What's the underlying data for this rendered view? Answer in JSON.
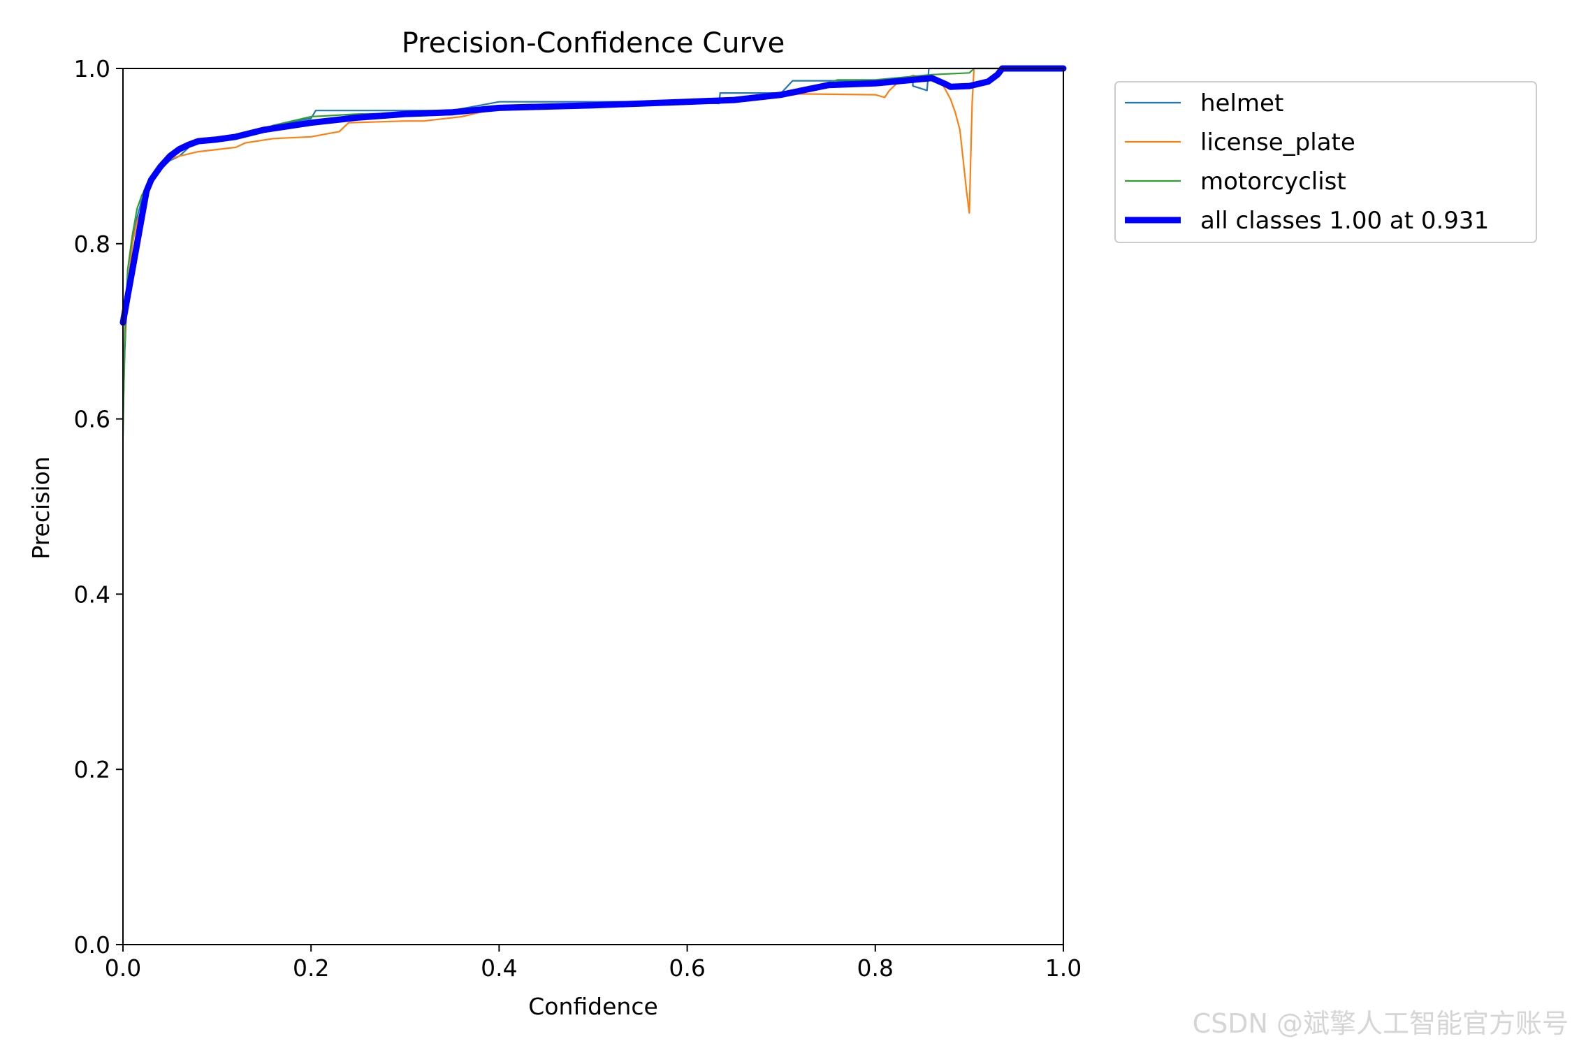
{
  "chart_data": {
    "type": "line",
    "title": "Precision-Confidence Curve",
    "xlabel": "Confidence",
    "ylabel": "Precision",
    "xlim": [
      0,
      1
    ],
    "ylim": [
      0,
      1
    ],
    "x_ticks": [
      "0.0",
      "0.2",
      "0.4",
      "0.6",
      "0.8",
      "1.0"
    ],
    "y_ticks": [
      "0.0",
      "0.2",
      "0.4",
      "0.6",
      "0.8",
      "1.0"
    ],
    "grid": false,
    "legend_position": "outside-top-right",
    "series": [
      {
        "name": "helmet",
        "color": "#1f77b4",
        "width": "thin",
        "points": [
          [
            0.0,
            0.6
          ],
          [
            0.002,
            0.68
          ],
          [
            0.005,
            0.75
          ],
          [
            0.01,
            0.8
          ],
          [
            0.015,
            0.83
          ],
          [
            0.02,
            0.85
          ],
          [
            0.025,
            0.86
          ],
          [
            0.03,
            0.87
          ],
          [
            0.04,
            0.885
          ],
          [
            0.05,
            0.895
          ],
          [
            0.06,
            0.9
          ],
          [
            0.07,
            0.91
          ],
          [
            0.08,
            0.915
          ],
          [
            0.1,
            0.918
          ],
          [
            0.12,
            0.92
          ],
          [
            0.135,
            0.925
          ],
          [
            0.16,
            0.935
          ],
          [
            0.2,
            0.943
          ],
          [
            0.205,
            0.952
          ],
          [
            0.25,
            0.952
          ],
          [
            0.3,
            0.952
          ],
          [
            0.35,
            0.952
          ],
          [
            0.38,
            0.958
          ],
          [
            0.4,
            0.962
          ],
          [
            0.5,
            0.962
          ],
          [
            0.6,
            0.962
          ],
          [
            0.634,
            0.96
          ],
          [
            0.635,
            0.972
          ],
          [
            0.7,
            0.972
          ],
          [
            0.712,
            0.986
          ],
          [
            0.8,
            0.986
          ],
          [
            0.84,
            0.987
          ],
          [
            0.84,
            0.98
          ],
          [
            0.855,
            0.975
          ],
          [
            0.857,
            1.0
          ],
          [
            1.0,
            1.0
          ]
        ]
      },
      {
        "name": "license_plate",
        "color": "#ff7f0e",
        "width": "thin",
        "points": [
          [
            0.0,
            0.65
          ],
          [
            0.005,
            0.75
          ],
          [
            0.01,
            0.8
          ],
          [
            0.015,
            0.825
          ],
          [
            0.02,
            0.84
          ],
          [
            0.025,
            0.86
          ],
          [
            0.03,
            0.875
          ],
          [
            0.035,
            0.885
          ],
          [
            0.045,
            0.895
          ],
          [
            0.06,
            0.9
          ],
          [
            0.08,
            0.905
          ],
          [
            0.12,
            0.91
          ],
          [
            0.13,
            0.915
          ],
          [
            0.16,
            0.92
          ],
          [
            0.2,
            0.922
          ],
          [
            0.23,
            0.928
          ],
          [
            0.24,
            0.938
          ],
          [
            0.3,
            0.94
          ],
          [
            0.32,
            0.94
          ],
          [
            0.36,
            0.945
          ],
          [
            0.4,
            0.955
          ],
          [
            0.5,
            0.958
          ],
          [
            0.6,
            0.962
          ],
          [
            0.68,
            0.965
          ],
          [
            0.72,
            0.971
          ],
          [
            0.8,
            0.97
          ],
          [
            0.81,
            0.967
          ],
          [
            0.815,
            0.975
          ],
          [
            0.825,
            0.985
          ],
          [
            0.84,
            0.992
          ],
          [
            0.87,
            0.985
          ],
          [
            0.88,
            0.965
          ],
          [
            0.885,
            0.95
          ],
          [
            0.89,
            0.93
          ],
          [
            0.893,
            0.9
          ],
          [
            0.897,
            0.86
          ],
          [
            0.9,
            0.835
          ],
          [
            0.903,
            0.96
          ],
          [
            0.905,
            1.0
          ],
          [
            1.0,
            1.0
          ]
        ]
      },
      {
        "name": "motorcyclist",
        "color": "#2ca02c",
        "width": "thin",
        "points": [
          [
            0.0,
            0.58
          ],
          [
            0.002,
            0.7
          ],
          [
            0.005,
            0.77
          ],
          [
            0.01,
            0.81
          ],
          [
            0.015,
            0.84
          ],
          [
            0.02,
            0.855
          ],
          [
            0.025,
            0.865
          ],
          [
            0.03,
            0.875
          ],
          [
            0.04,
            0.89
          ],
          [
            0.05,
            0.9
          ],
          [
            0.06,
            0.905
          ],
          [
            0.07,
            0.912
          ],
          [
            0.08,
            0.918
          ],
          [
            0.1,
            0.92
          ],
          [
            0.13,
            0.925
          ],
          [
            0.16,
            0.935
          ],
          [
            0.2,
            0.945
          ],
          [
            0.25,
            0.948
          ],
          [
            0.35,
            0.95
          ],
          [
            0.4,
            0.955
          ],
          [
            0.5,
            0.96
          ],
          [
            0.6,
            0.963
          ],
          [
            0.65,
            0.965
          ],
          [
            0.7,
            0.968
          ],
          [
            0.72,
            0.975
          ],
          [
            0.76,
            0.987
          ],
          [
            0.8,
            0.987
          ],
          [
            0.86,
            0.993
          ],
          [
            0.9,
            0.995
          ],
          [
            0.905,
            1.0
          ],
          [
            1.0,
            1.0
          ]
        ]
      },
      {
        "name": "all classes 1.00 at 0.931",
        "color": "#0000ff",
        "width": "thick",
        "points": [
          [
            0.0,
            0.71
          ],
          [
            0.005,
            0.74
          ],
          [
            0.01,
            0.77
          ],
          [
            0.015,
            0.8
          ],
          [
            0.02,
            0.83
          ],
          [
            0.025,
            0.86
          ],
          [
            0.03,
            0.873
          ],
          [
            0.04,
            0.888
          ],
          [
            0.05,
            0.9
          ],
          [
            0.06,
            0.908
          ],
          [
            0.07,
            0.913
          ],
          [
            0.08,
            0.917
          ],
          [
            0.1,
            0.919
          ],
          [
            0.12,
            0.922
          ],
          [
            0.15,
            0.93
          ],
          [
            0.2,
            0.938
          ],
          [
            0.25,
            0.944
          ],
          [
            0.3,
            0.948
          ],
          [
            0.35,
            0.95
          ],
          [
            0.4,
            0.955
          ],
          [
            0.5,
            0.958
          ],
          [
            0.55,
            0.96
          ],
          [
            0.6,
            0.962
          ],
          [
            0.65,
            0.964
          ],
          [
            0.7,
            0.97
          ],
          [
            0.75,
            0.981
          ],
          [
            0.8,
            0.983
          ],
          [
            0.84,
            0.987
          ],
          [
            0.86,
            0.989
          ],
          [
            0.875,
            0.982
          ],
          [
            0.88,
            0.979
          ],
          [
            0.9,
            0.98
          ],
          [
            0.92,
            0.985
          ],
          [
            0.93,
            0.993
          ],
          [
            0.935,
            1.0
          ],
          [
            1.0,
            1.0
          ]
        ]
      }
    ]
  },
  "watermark": "CSDN @斌擎人工智能官方账号"
}
